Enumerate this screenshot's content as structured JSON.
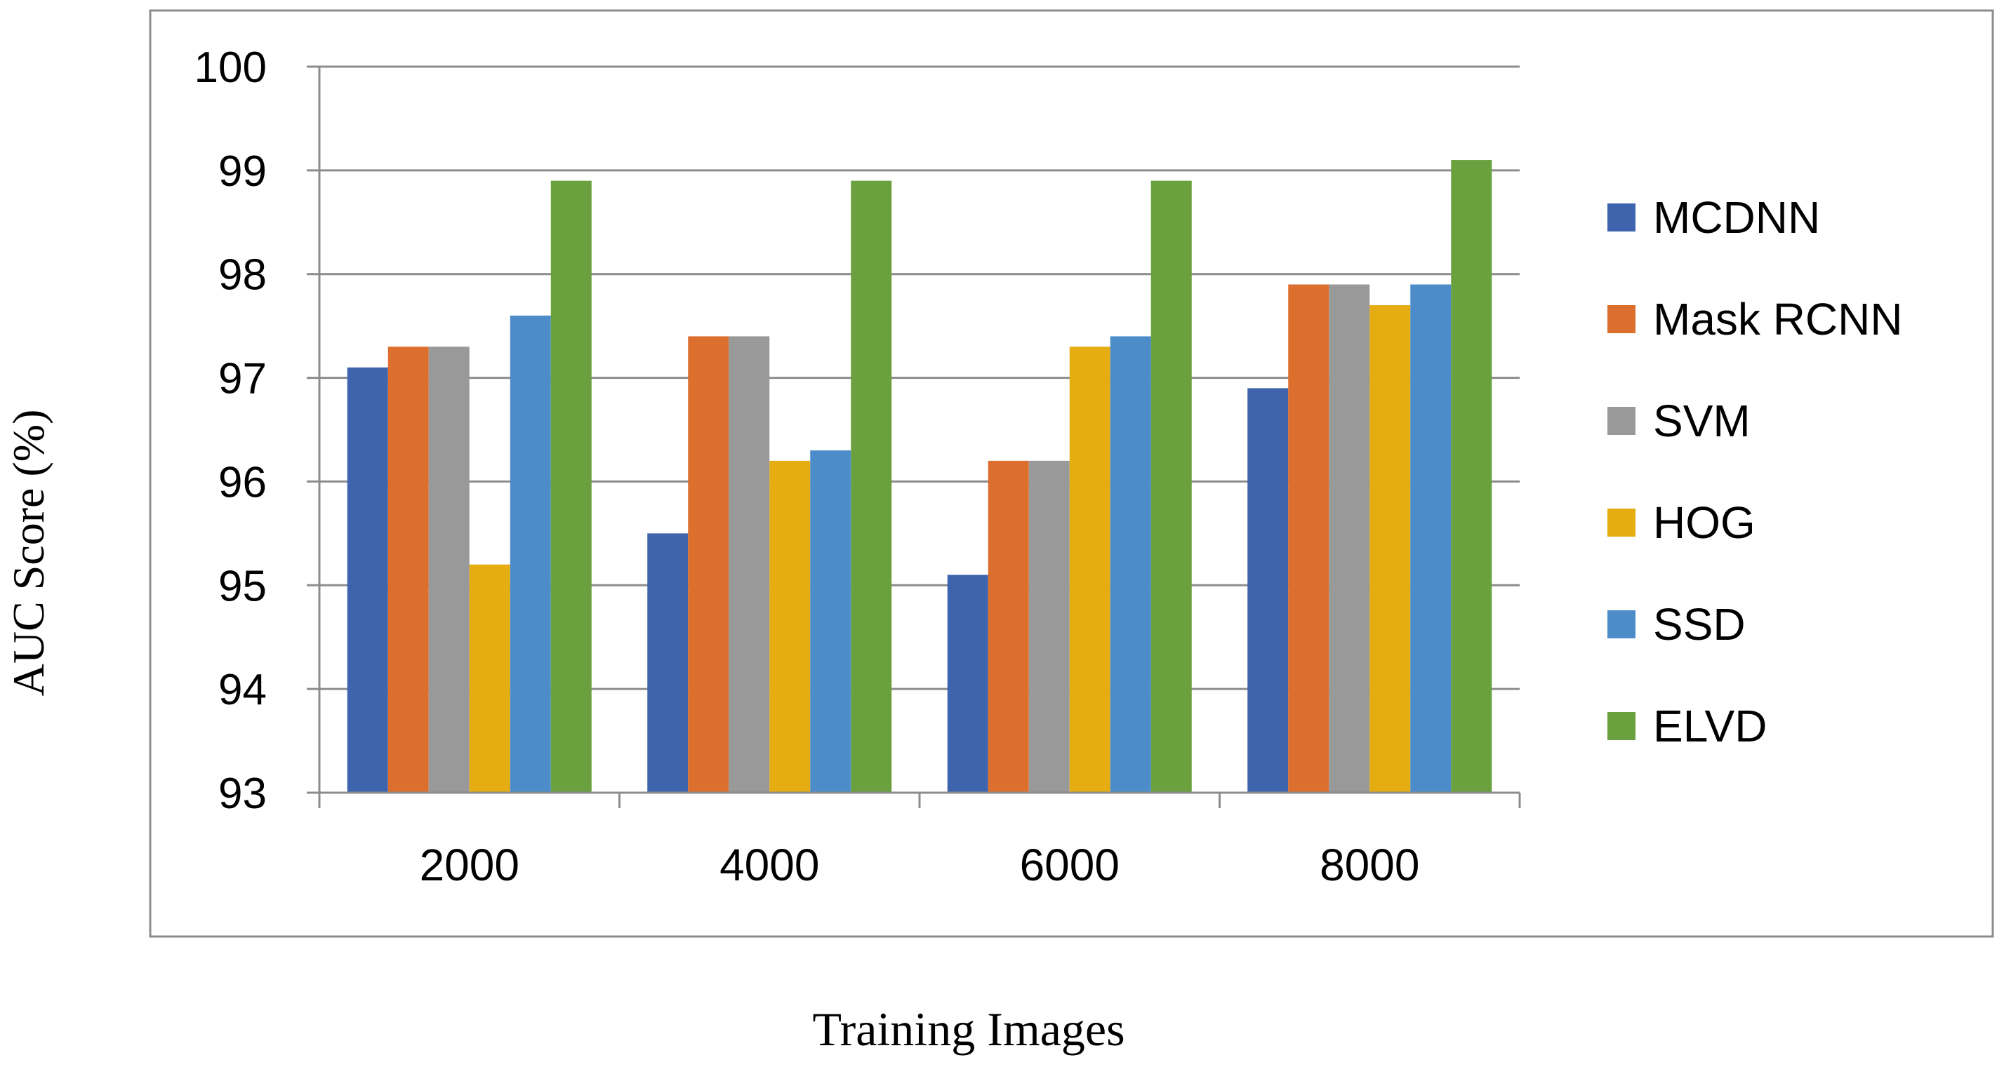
{
  "chart_data": {
    "type": "bar",
    "title": "",
    "xlabel": "Training Images",
    "ylabel": "AUC Score (%)",
    "categories": [
      "2000",
      "4000",
      "6000",
      "8000"
    ],
    "ylim": [
      93,
      100
    ],
    "yticks": [
      "93",
      "94",
      "95",
      "96",
      "97",
      "98",
      "99",
      "100"
    ],
    "grid": "horizontal",
    "legend_position": "right",
    "series": [
      {
        "name": "MCDNN",
        "color": "#3E64AD",
        "values": [
          97.1,
          95.5,
          95.1,
          96.9
        ]
      },
      {
        "name": "Mask RCNN",
        "color": "#DD6F2E",
        "values": [
          97.3,
          97.4,
          96.2,
          97.9
        ]
      },
      {
        "name": "SVM",
        "color": "#999999",
        "values": [
          97.3,
          97.4,
          96.2,
          97.9
        ]
      },
      {
        "name": "HOG",
        "color": "#E5AD12",
        "values": [
          95.2,
          96.2,
          97.3,
          97.7
        ]
      },
      {
        "name": "SSD",
        "color": "#4C8DC9",
        "values": [
          97.6,
          96.3,
          97.4,
          97.9
        ]
      },
      {
        "name": "ELVD",
        "color": "#6AA03E",
        "values": [
          98.9,
          98.9,
          98.9,
          99.1
        ]
      }
    ]
  }
}
